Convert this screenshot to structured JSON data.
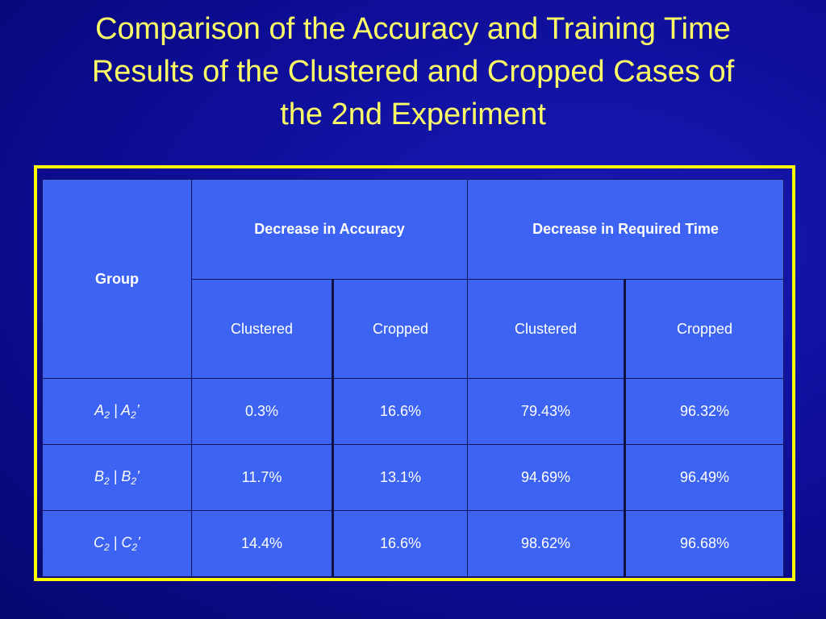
{
  "slide": {
    "title_line1": "Comparison of the Accuracy and Training Time",
    "title_line2": "Results of the Clustered and Cropped Cases of",
    "title_line3": "the 2nd Experiment"
  },
  "table": {
    "group_header": "Group",
    "accuracy_header": "Decrease in Accuracy",
    "time_header": "Decrease in Required Time",
    "sub_headers": [
      "Clustered",
      "Cropped",
      "Clustered",
      "Cropped"
    ],
    "rows": [
      {
        "group": {
          "letter": "A",
          "sub": "2",
          "sep": " | ",
          "prime_letter": "A",
          "prime_sub": "2",
          "prime": "’"
        },
        "values": [
          "0.3%",
          "16.6%",
          "79.43%",
          "96.32%"
        ]
      },
      {
        "group": {
          "letter": "B",
          "sub": "2",
          "sep": " | ",
          "prime_letter": "B",
          "prime_sub": "2",
          "prime": "’"
        },
        "values": [
          "11.7%",
          "13.1%",
          "94.69%",
          "96.49%"
        ]
      },
      {
        "group": {
          "letter": "C",
          "sub": "2",
          "sep": " | ",
          "prime_letter": "C",
          "prime_sub": "2",
          "prime": "’"
        },
        "values": [
          "14.4%",
          "16.6%",
          "98.62%",
          "96.68%"
        ]
      }
    ]
  },
  "colors": {
    "background": "#0d0d96",
    "title": "#ffff66",
    "frame": "#ffff00",
    "cell": "#3c63f2"
  }
}
